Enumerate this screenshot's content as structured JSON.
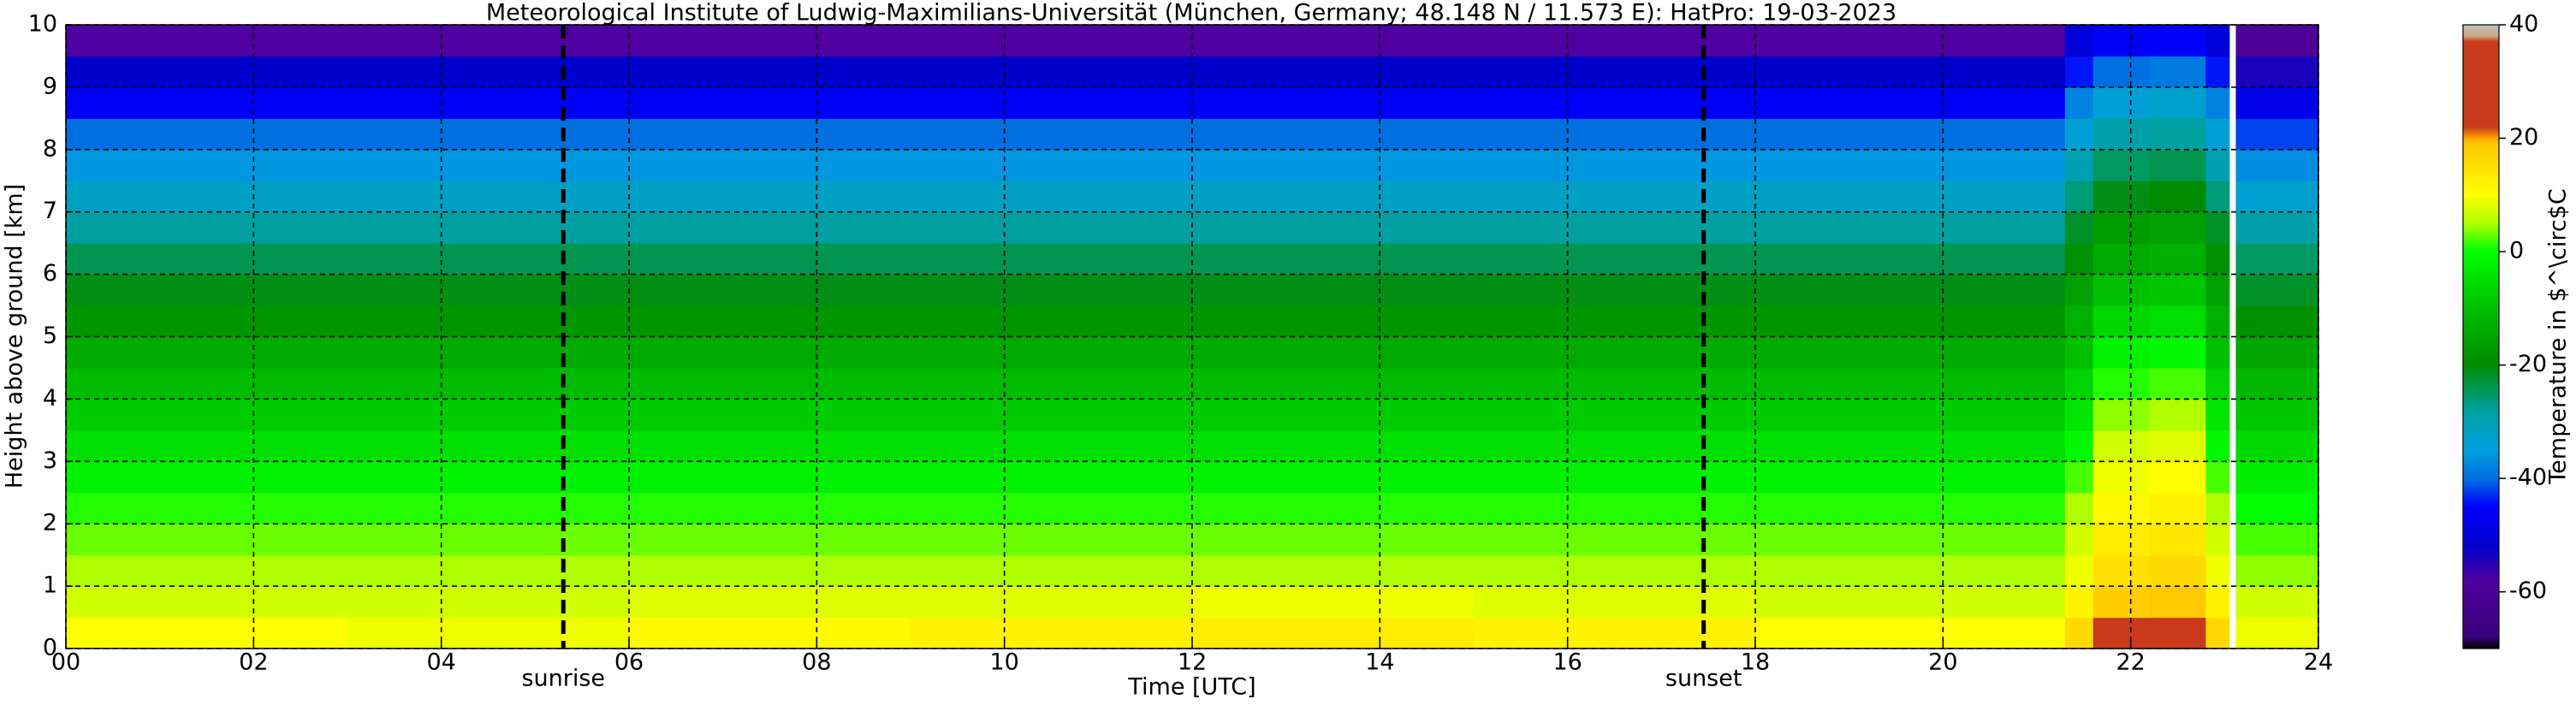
{
  "chart_data": {
    "type": "heatmap",
    "title": "Meteorological Institute of Ludwig-Maximilians-Universität (München, Germany; 48.148 N / 11.573 E):    HatPro: 19-03-2023",
    "x_label": "Time [UTC]",
    "y_label": "Height above ground [km]",
    "colorbar_label": "Temperature in $^\\circ$C",
    "x_bins": [
      0,
      3,
      6,
      9,
      12,
      15,
      18,
      21.3,
      21.6,
      22.2,
      22.8,
      23.05,
      23.12,
      24
    ],
    "y_bins": [
      0,
      0.5,
      1,
      1.5,
      2,
      2.5,
      3,
      3.5,
      4,
      4.5,
      5,
      5.5,
      6,
      6.5,
      7,
      7.5,
      8,
      8.5,
      9,
      9.5,
      10
    ],
    "z": [
      [
        10,
        7,
        5,
        3,
        1,
        -2,
        -5,
        -8,
        -11,
        -14,
        -18,
        -21,
        -24,
        -28,
        -32,
        -36,
        -40,
        -46,
        -52,
        -58
      ],
      [
        9,
        7,
        5,
        3,
        1,
        -2,
        -5,
        -8,
        -11,
        -14,
        -18,
        -21,
        -24,
        -28,
        -32,
        -36,
        -40,
        -46,
        -52,
        -58
      ],
      [
        11,
        8,
        5,
        3,
        1,
        -2,
        -5,
        -8,
        -11,
        -14,
        -18,
        -21,
        -24,
        -28,
        -32,
        -36,
        -40,
        -46,
        -52,
        -58
      ],
      [
        12,
        8,
        5,
        3,
        1,
        -2,
        -5,
        -8,
        -11,
        -14,
        -18,
        -21,
        -24,
        -28,
        -32,
        -36,
        -40,
        -46,
        -52,
        -58
      ],
      [
        13,
        9,
        5,
        3,
        1,
        -2,
        -5,
        -8,
        -11,
        -14,
        -18,
        -21,
        -24,
        -28,
        -32,
        -36,
        -40,
        -46,
        -52,
        -58
      ],
      [
        12,
        8,
        5,
        3,
        1,
        -2,
        -5,
        -8,
        -11,
        -14,
        -18,
        -21,
        -24,
        -28,
        -32,
        -36,
        -40,
        -46,
        -52,
        -58
      ],
      [
        10,
        7,
        5,
        3,
        1,
        -2,
        -5,
        -8,
        -11,
        -14,
        -18,
        -21,
        -24,
        -28,
        -32,
        -36,
        -40,
        -46,
        -52,
        -58
      ],
      [
        16,
        12,
        9,
        7,
        5,
        2,
        -1,
        -4,
        -7,
        -10,
        -13,
        -16,
        -19,
        -22,
        -26,
        -30,
        -34,
        -38,
        -44,
        -50
      ],
      [
        26,
        18,
        15,
        13,
        11,
        9,
        7,
        4,
        1,
        -2,
        -6,
        -10,
        -14,
        -17,
        -21,
        -25,
        -29,
        -34,
        -40,
        -46
      ],
      [
        27,
        19,
        16,
        14,
        12,
        10,
        8,
        5,
        2,
        -1,
        -5,
        -9,
        -13,
        -16,
        -20,
        -24,
        -28,
        -33,
        -39,
        -45
      ],
      [
        16,
        12,
        9,
        7,
        5,
        2,
        -1,
        -4,
        -7,
        -10,
        -13,
        -16,
        -19,
        -22,
        -26,
        -30,
        -34,
        -38,
        -44,
        -50
      ],
      [
        null,
        null,
        null,
        null,
        null,
        null,
        null,
        null,
        null,
        null,
        null,
        null,
        null,
        null,
        null,
        null,
        null,
        null,
        null,
        null
      ],
      [
        9,
        7,
        4,
        2,
        0,
        -3,
        -6,
        -9,
        -12,
        -15,
        -19,
        -22,
        -25,
        -29,
        -33,
        -37,
        -42,
        -48,
        -54,
        -60
      ]
    ],
    "xlim": [
      0,
      24
    ],
    "xticks": [
      {
        "value": 0,
        "label": "00"
      },
      {
        "value": 2,
        "label": "02"
      },
      {
        "value": 4,
        "label": "04"
      },
      {
        "value": 6,
        "label": "06"
      },
      {
        "value": 8,
        "label": "08"
      },
      {
        "value": 10,
        "label": "10"
      },
      {
        "value": 12,
        "label": "12"
      },
      {
        "value": 14,
        "label": "14"
      },
      {
        "value": 16,
        "label": "16"
      },
      {
        "value": 18,
        "label": "18"
      },
      {
        "value": 20,
        "label": "20"
      },
      {
        "value": 22,
        "label": "22"
      },
      {
        "value": 24,
        "label": "24"
      }
    ],
    "ylim": [
      0,
      10
    ],
    "yticks": [
      0,
      1,
      2,
      3,
      4,
      5,
      6,
      7,
      8,
      9,
      10
    ],
    "grid": true,
    "clim": [
      -70,
      40
    ],
    "cticks": [
      -60,
      -40,
      -20,
      0,
      20,
      40
    ],
    "colormap": [
      {
        "value": -70,
        "color": "#000000"
      },
      {
        "value": -68,
        "color": "#3a007a"
      },
      {
        "value": -58,
        "color": "#5000a0"
      },
      {
        "value": -52,
        "color": "#0000cc"
      },
      {
        "value": -45,
        "color": "#0000ff"
      },
      {
        "value": -40,
        "color": "#0070e0"
      },
      {
        "value": -35,
        "color": "#00a0e0"
      },
      {
        "value": -28,
        "color": "#00a0a0"
      },
      {
        "value": -20,
        "color": "#008c00"
      },
      {
        "value": -10,
        "color": "#00c000"
      },
      {
        "value": 0,
        "color": "#00ff00"
      },
      {
        "value": 5,
        "color": "#b0ff00"
      },
      {
        "value": 10,
        "color": "#ffff00"
      },
      {
        "value": 19,
        "color": "#ffc800"
      },
      {
        "value": 20,
        "color": "#ffa000"
      },
      {
        "value": 22,
        "color": "#c83a1a"
      },
      {
        "value": 37,
        "color": "#c83a1a"
      },
      {
        "value": 38,
        "color": "#c8a888"
      },
      {
        "value": 40,
        "color": "#c0c0c0"
      }
    ],
    "annotations": [
      {
        "x": 5.3,
        "label": "sunrise"
      },
      {
        "x": 17.45,
        "label": "sunset"
      }
    ]
  }
}
